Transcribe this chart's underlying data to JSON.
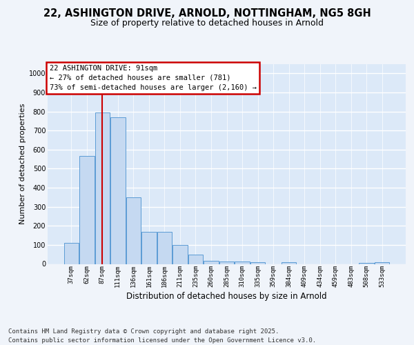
{
  "title1": "22, ASHINGTON DRIVE, ARNOLD, NOTTINGHAM, NG5 8GH",
  "title2": "Size of property relative to detached houses in Arnold",
  "xlabel": "Distribution of detached houses by size in Arnold",
  "ylabel": "Number of detached properties",
  "categories": [
    "37sqm",
    "62sqm",
    "87sqm",
    "111sqm",
    "136sqm",
    "161sqm",
    "186sqm",
    "211sqm",
    "235sqm",
    "260sqm",
    "285sqm",
    "310sqm",
    "335sqm",
    "359sqm",
    "384sqm",
    "409sqm",
    "434sqm",
    "459sqm",
    "483sqm",
    "508sqm",
    "533sqm"
  ],
  "values": [
    112,
    565,
    795,
    770,
    350,
    168,
    168,
    98,
    50,
    18,
    12,
    12,
    10,
    0,
    10,
    0,
    0,
    0,
    0,
    5,
    8
  ],
  "bar_color": "#c5d9f1",
  "bar_edge_color": "#5b9bd5",
  "background_color": "#dce9f8",
  "grid_color": "#ffffff",
  "vline_x_idx": 2,
  "vline_color": "#cc0000",
  "annotation_line1": "22 ASHINGTON DRIVE: 91sqm",
  "annotation_line2": "← 27% of detached houses are smaller (781)",
  "annotation_line3": "73% of semi-detached houses are larger (2,160) →",
  "annotation_box_facecolor": "#ffffff",
  "annotation_box_edgecolor": "#cc0000",
  "ylim": [
    0,
    1050
  ],
  "yticks": [
    0,
    100,
    200,
    300,
    400,
    500,
    600,
    700,
    800,
    900,
    1000
  ],
  "footer_line1": "Contains HM Land Registry data © Crown copyright and database right 2025.",
  "footer_line2": "Contains public sector information licensed under the Open Government Licence v3.0.",
  "title1_fontsize": 10.5,
  "title2_fontsize": 9,
  "tick_fontsize": 6.5,
  "ylabel_fontsize": 8,
  "xlabel_fontsize": 8.5,
  "annotation_fontsize": 7.5,
  "footer_fontsize": 6.5,
  "fig_facecolor": "#f0f4fa"
}
